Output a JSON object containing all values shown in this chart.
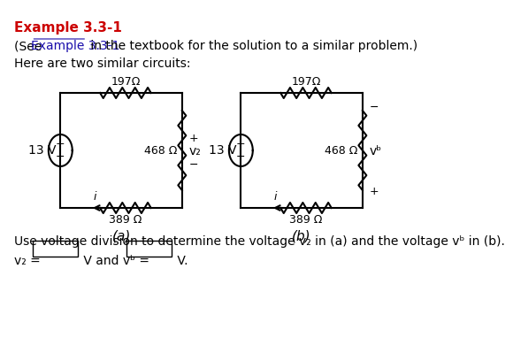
{
  "title": "Example 3.3-1",
  "title_color": "#cc0000",
  "line2": "Here are two similar circuits:",
  "bottom_text": "Use voltage division to determine the voltage v₂ in (a) and the voltage vᵇ in (b).",
  "label_a": "(a)",
  "label_b": "(b)",
  "resistor_top": "197Ω",
  "resistor_mid": "468 Ω",
  "resistor_bot": "389 Ω",
  "voltage_src": "13 V",
  "link_color": "#1a0dab",
  "bg_color": "#ffffff",
  "text_color": "#000000",
  "circuit_color": "#000000"
}
